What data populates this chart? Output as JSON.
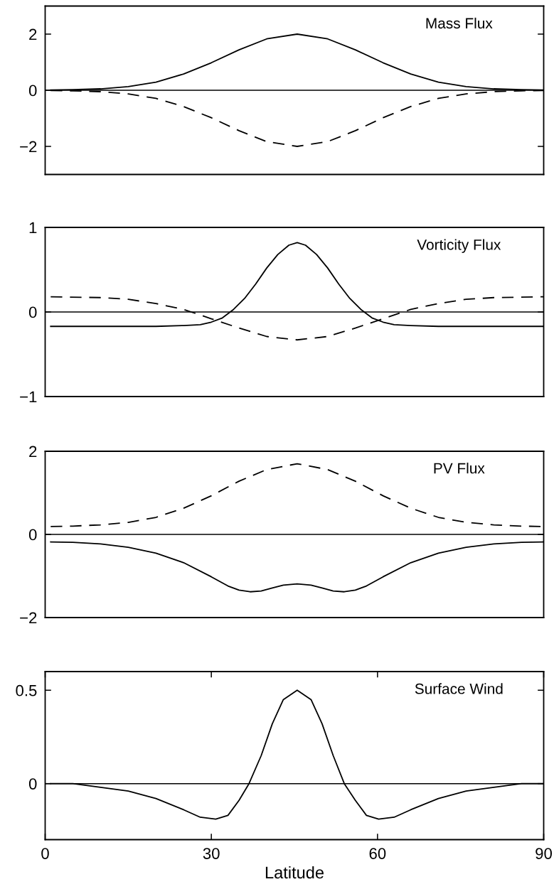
{
  "chart_data": [
    {
      "type": "line",
      "title": "Mass Flux",
      "xlim": [
        0,
        90
      ],
      "ylim": [
        -3,
        3
      ],
      "yticks": [
        -2,
        0,
        2
      ],
      "tick_labels": "y",
      "grid": false,
      "ref_lines": [
        {
          "axis": "y",
          "value": 0,
          "color": "#000000"
        }
      ],
      "series": [
        {
          "color": "#000000",
          "line_style": "solid",
          "x": [
            1,
            5,
            10,
            15,
            20,
            25,
            30,
            35,
            40,
            45.5,
            51,
            56,
            61,
            66,
            71,
            76,
            81,
            86,
            90
          ],
          "values": [
            0.01,
            0.02,
            0.05,
            0.13,
            0.29,
            0.58,
            0.98,
            1.44,
            1.83,
            2,
            1.83,
            1.44,
            0.98,
            0.58,
            0.29,
            0.13,
            0.05,
            0.02,
            0.01
          ]
        },
        {
          "color": "#000000",
          "line_style": "dashed",
          "x": [
            1,
            5,
            10,
            15,
            20,
            25,
            30,
            35,
            40,
            45.5,
            51,
            56,
            61,
            66,
            71,
            76,
            81,
            86,
            90
          ],
          "values": [
            -0.01,
            -0.02,
            -0.05,
            -0.13,
            -0.29,
            -0.58,
            -0.98,
            -1.44,
            -1.83,
            -2,
            -1.83,
            -1.44,
            -0.98,
            -0.58,
            -0.29,
            -0.13,
            -0.05,
            -0.02,
            -0.01
          ]
        }
      ]
    },
    {
      "type": "line",
      "title": "Vorticity Flux",
      "xlim": [
        0,
        90
      ],
      "ylim": [
        -1,
        1
      ],
      "yticks": [
        -1,
        0,
        1
      ],
      "tick_labels": "y",
      "grid": false,
      "ref_lines": [
        {
          "axis": "y",
          "value": 0,
          "color": "#000000"
        }
      ],
      "series": [
        {
          "color": "#000000",
          "line_style": "solid",
          "x": [
            1,
            10,
            20,
            25,
            28,
            30,
            32,
            34,
            36,
            38,
            40,
            42,
            44,
            45.5,
            47,
            49,
            51,
            53,
            55,
            57,
            59,
            61,
            63,
            66,
            71,
            80,
            90
          ],
          "values": [
            -0.17,
            -0.17,
            -0.17,
            -0.16,
            -0.15,
            -0.12,
            -0.07,
            0.03,
            0.16,
            0.33,
            0.52,
            0.68,
            0.79,
            0.82,
            0.79,
            0.68,
            0.52,
            0.33,
            0.16,
            0.03,
            -0.07,
            -0.12,
            -0.15,
            -0.16,
            -0.17,
            -0.17,
            -0.17
          ]
        },
        {
          "color": "#000000",
          "line_style": "dashed",
          "x": [
            1,
            10,
            15,
            20,
            25,
            30,
            35,
            40,
            45.5,
            51,
            56,
            61,
            66,
            71,
            76,
            81,
            90
          ],
          "values": [
            0.18,
            0.17,
            0.15,
            0.1,
            0.03,
            -0.08,
            -0.19,
            -0.29,
            -0.33,
            -0.29,
            -0.19,
            -0.08,
            0.03,
            0.1,
            0.15,
            0.17,
            0.18
          ]
        }
      ]
    },
    {
      "type": "line",
      "title": "PV Flux",
      "xlim": [
        0,
        90
      ],
      "ylim": [
        -2,
        2
      ],
      "yticks": [
        -2,
        0,
        2
      ],
      "tick_labels": "y",
      "grid": false,
      "ref_lines": [
        {
          "axis": "y",
          "value": 0,
          "color": "#000000"
        }
      ],
      "series": [
        {
          "color": "#000000",
          "line_style": "dashed",
          "x": [
            1,
            5,
            10,
            15,
            20,
            25,
            30,
            35,
            40,
            45.5,
            51,
            56,
            61,
            66,
            71,
            76,
            81,
            86,
            90
          ],
          "values": [
            0.19,
            0.2,
            0.23,
            0.29,
            0.41,
            0.63,
            0.93,
            1.28,
            1.56,
            1.7,
            1.56,
            1.28,
            0.93,
            0.63,
            0.41,
            0.29,
            0.23,
            0.2,
            0.19
          ]
        },
        {
          "color": "#000000",
          "line_style": "solid",
          "x": [
            1,
            5,
            10,
            15,
            20,
            25,
            30,
            33,
            35,
            37,
            39,
            41,
            43,
            45.5,
            48,
            50,
            52,
            54,
            56,
            58,
            61,
            66,
            71,
            76,
            81,
            86,
            90
          ],
          "values": [
            -0.18,
            -0.19,
            -0.23,
            -0.31,
            -0.45,
            -0.68,
            -1.02,
            -1.24,
            -1.34,
            -1.38,
            -1.36,
            -1.29,
            -1.22,
            -1.19,
            -1.22,
            -1.29,
            -1.36,
            -1.38,
            -1.34,
            -1.24,
            -1.02,
            -0.68,
            -0.45,
            -0.31,
            -0.23,
            -0.19,
            -0.18
          ]
        }
      ]
    },
    {
      "type": "line",
      "title": "Surface Wind",
      "xlabel": "Latitude",
      "xlim": [
        0,
        90
      ],
      "xticks": [
        0,
        30,
        60,
        90
      ],
      "ylim": [
        -0.3,
        0.6
      ],
      "yticks": [
        0,
        0.5
      ],
      "grid": false,
      "ref_lines": [
        {
          "axis": "y",
          "value": 0,
          "color": "#000000"
        }
      ],
      "series": [
        {
          "color": "#000000",
          "line_style": "solid",
          "x": [
            1,
            5,
            10,
            15,
            20,
            25,
            28,
            30.8,
            33,
            35,
            36.8,
            39,
            41,
            43,
            45.5,
            48,
            50,
            52,
            54,
            56,
            58,
            60.2,
            63,
            66,
            71,
            76,
            81,
            86,
            90
          ],
          "values": [
            0,
            0,
            -0.02,
            -0.04,
            -0.08,
            -0.14,
            -0.18,
            -0.19,
            -0.17,
            -0.09,
            0,
            0.15,
            0.32,
            0.45,
            0.5,
            0.45,
            0.32,
            0.15,
            0,
            -0.09,
            -0.17,
            -0.19,
            -0.18,
            -0.14,
            -0.08,
            -0.04,
            -0.02,
            0,
            0
          ]
        }
      ]
    }
  ]
}
